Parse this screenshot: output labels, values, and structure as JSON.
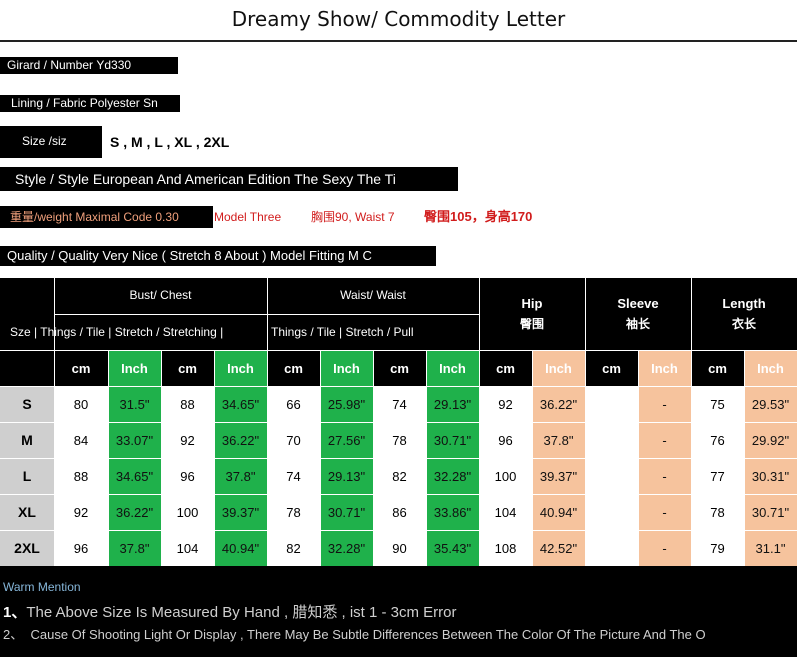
{
  "title": "Dreamy Show/ Commodity Letter",
  "specs": {
    "number": {
      "label": "Girard / Number",
      "value": "Yd330"
    },
    "fabric": {
      "label": "Lining / Fabric",
      "value": "Polyester Sn"
    },
    "size": {
      "label": "Size /siz",
      "value": "S , M , L , XL , 2XL"
    },
    "style": {
      "label": "Style / Style",
      "value": "European And American Edition The Sexy The Ti"
    },
    "weight": {
      "label": "重量/weight  Maximal  Code  0.30",
      "model": "Model Three",
      "bust_waist": "胸围90, Waist 7",
      "hip_height": "臀围105，身高170"
    },
    "quality": {
      "label": "Quality / Quality",
      "value": "Very Nice ( Stretch  8  About ) Model Fitting  M  C"
    }
  },
  "table": {
    "bust_group": "Bust/ Chest",
    "waist_group": "Waist/ Waist",
    "size_stretch_label": "Sze  |  Things  /  Tile  |  Stretch  /  Stretching  |",
    "waist_stretch_label": "Things  /  Tile  |  Stretch  /  Pull",
    "hip_en": "Hip",
    "hip_cn": "臀围",
    "sleeve_en": "Sleeve",
    "sleeve_cn": "袖长",
    "length_en": "Length",
    "length_cn": "衣长",
    "units": [
      "cm",
      "Inch",
      "cm",
      "Inch",
      "cm",
      "Inch",
      "cm",
      "Inch",
      "cm",
      "Inch",
      "cm",
      "Inch",
      "cm",
      "Inch"
    ],
    "rows": [
      {
        "size": "S",
        "cells": [
          "80",
          "31.5\"",
          "88",
          "34.65\"",
          "66",
          "25.98\"",
          "74",
          "29.13\"",
          "92",
          "36.22\"",
          "",
          "-",
          "75",
          "29.53\""
        ]
      },
      {
        "size": "M",
        "cells": [
          "84",
          "33.07\"",
          "92",
          "36.22\"",
          "70",
          "27.56\"",
          "78",
          "30.71\"",
          "96",
          "37.8\"",
          "",
          "-",
          "76",
          "29.92\""
        ]
      },
      {
        "size": "L",
        "cells": [
          "88",
          "34.65\"",
          "96",
          "37.8\"",
          "74",
          "29.13\"",
          "82",
          "32.28\"",
          "100",
          "39.37\"",
          "",
          "-",
          "77",
          "30.31\""
        ]
      },
      {
        "size": "XL",
        "cells": [
          "92",
          "36.22\"",
          "100",
          "39.37\"",
          "78",
          "30.71\"",
          "86",
          "33.86\"",
          "104",
          "40.94\"",
          "",
          "-",
          "78",
          "30.71\""
        ]
      },
      {
        "size": "2XL",
        "cells": [
          "96",
          "37.8\"",
          "104",
          "40.94\"",
          "82",
          "32.28\"",
          "90",
          "35.43\"",
          "108",
          "42.52\"",
          "",
          "-",
          "79",
          "31.1\""
        ]
      }
    ]
  },
  "notes": {
    "title": "Warm Mention",
    "line1_num": "1、",
    "line1": "The Above Size Is Measured By Hand , 腊知悉 , ist 1 - 3cm Error",
    "line2_num": "2、",
    "line2": "Cause  Of  Shooting  Light  Or  Display ,  There  May  Be  Subtle  Differences  Between  The  Color  Of  The  Picture  And  The  O"
  },
  "colors": {
    "green": "#1fb14b",
    "peach": "#f6c39d",
    "header_bg": "#000000",
    "row_label_bg": "#cfcfcf"
  }
}
